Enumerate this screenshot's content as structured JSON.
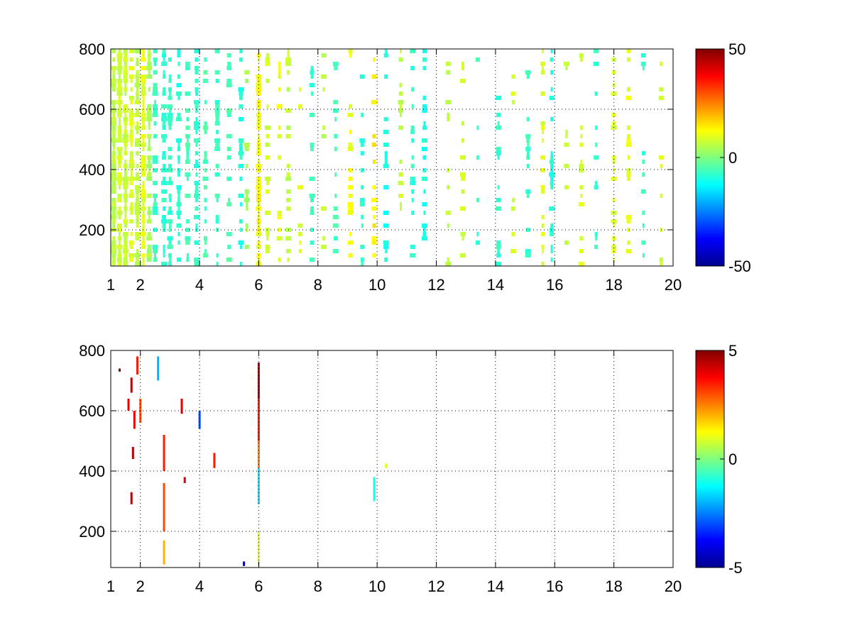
{
  "chart_data": [
    {
      "type": "heatmap",
      "title": "",
      "xlabel": "",
      "ylabel": "",
      "xlim": [
        1,
        20
      ],
      "ylim": [
        80,
        800
      ],
      "xticks": [
        1,
        2,
        4,
        6,
        8,
        10,
        12,
        14,
        16,
        18,
        20
      ],
      "yticks": [
        200,
        400,
        600,
        800
      ],
      "grid": true,
      "colormap": "jet",
      "clim": [
        -50,
        50
      ],
      "colorbar_ticks": [
        -50,
        0,
        50
      ],
      "pattern": "sparse scattered cells, dense at low x, thinning toward high x",
      "columns": [
        {
          "x": 1.1,
          "density": 0.85,
          "value": 6
        },
        {
          "x": 1.3,
          "density": 0.85,
          "value": 8
        },
        {
          "x": 1.5,
          "density": 0.8,
          "value": 7
        },
        {
          "x": 1.7,
          "density": 0.8,
          "value": 9
        },
        {
          "x": 1.9,
          "density": 0.8,
          "value": 6
        },
        {
          "x": 2.1,
          "density": 0.75,
          "value": 10
        },
        {
          "x": 2.3,
          "density": 0.7,
          "value": 4
        },
        {
          "x": 2.5,
          "density": 0.55,
          "value": -6
        },
        {
          "x": 2.8,
          "density": 0.6,
          "value": -8
        },
        {
          "x": 3.0,
          "density": 0.55,
          "value": -7
        },
        {
          "x": 3.3,
          "density": 0.6,
          "value": -9
        },
        {
          "x": 3.6,
          "density": 0.5,
          "value": -6
        },
        {
          "x": 3.9,
          "density": 0.5,
          "value": -8
        },
        {
          "x": 4.2,
          "density": 0.4,
          "value": -5
        },
        {
          "x": 4.6,
          "density": 0.35,
          "value": -7
        },
        {
          "x": 5.0,
          "density": 0.35,
          "value": -5
        },
        {
          "x": 5.4,
          "density": 0.35,
          "value": -9
        },
        {
          "x": 5.6,
          "density": 0.3,
          "value": 4
        },
        {
          "x": 6.0,
          "density": 0.85,
          "value": 12
        },
        {
          "x": 6.3,
          "density": 0.35,
          "value": 8
        },
        {
          "x": 6.7,
          "density": 0.35,
          "value": 10
        },
        {
          "x": 7.0,
          "density": 0.3,
          "value": 6
        },
        {
          "x": 7.4,
          "density": 0.25,
          "value": 9
        },
        {
          "x": 7.8,
          "density": 0.3,
          "value": -7
        },
        {
          "x": 8.2,
          "density": 0.25,
          "value": 6
        },
        {
          "x": 8.6,
          "density": 0.25,
          "value": -6
        },
        {
          "x": 9.1,
          "density": 0.35,
          "value": 11
        },
        {
          "x": 9.5,
          "density": 0.25,
          "value": -8
        },
        {
          "x": 9.9,
          "density": 0.35,
          "value": 14
        },
        {
          "x": 10.3,
          "density": 0.35,
          "value": -10
        },
        {
          "x": 10.8,
          "density": 0.2,
          "value": 7
        },
        {
          "x": 11.2,
          "density": 0.25,
          "value": -8
        },
        {
          "x": 11.6,
          "density": 0.4,
          "value": -10
        },
        {
          "x": 12.4,
          "density": 0.15,
          "value": 6
        },
        {
          "x": 12.9,
          "density": 0.2,
          "value": 8
        },
        {
          "x": 13.4,
          "density": 0.15,
          "value": -7
        },
        {
          "x": 14.1,
          "density": 0.3,
          "value": -8
        },
        {
          "x": 14.6,
          "density": 0.2,
          "value": 8
        },
        {
          "x": 15.1,
          "density": 0.2,
          "value": -7
        },
        {
          "x": 15.6,
          "density": 0.3,
          "value": 9
        },
        {
          "x": 15.9,
          "density": 0.4,
          "value": -9
        },
        {
          "x": 16.4,
          "density": 0.2,
          "value": 7
        },
        {
          "x": 16.9,
          "density": 0.3,
          "value": 9
        },
        {
          "x": 17.4,
          "density": 0.2,
          "value": -7
        },
        {
          "x": 18.0,
          "density": 0.35,
          "value": 9
        },
        {
          "x": 18.5,
          "density": 0.3,
          "value": 10
        },
        {
          "x": 19.0,
          "density": 0.2,
          "value": -7
        },
        {
          "x": 19.6,
          "density": 0.2,
          "value": 8
        }
      ]
    },
    {
      "type": "heatmap",
      "title": "",
      "xlabel": "",
      "ylabel": "",
      "xlim": [
        1,
        20
      ],
      "ylim": [
        80,
        800
      ],
      "xticks": [
        1,
        2,
        4,
        6,
        8,
        10,
        12,
        14,
        16,
        18,
        20
      ],
      "yticks": [
        200,
        400,
        600,
        800
      ],
      "grid": true,
      "colormap": "jet",
      "clim": [
        -5,
        5
      ],
      "colorbar_ticks": [
        -5,
        0,
        5
      ],
      "pattern": "very sparse isolated streaks, strong column near x = 6",
      "streaks": [
        {
          "x": 1.3,
          "y0": 730,
          "y1": 740,
          "value": 5
        },
        {
          "x": 1.6,
          "y0": 600,
          "y1": 640,
          "value": 4
        },
        {
          "x": 1.7,
          "y0": 660,
          "y1": 710,
          "value": 4.5
        },
        {
          "x": 1.8,
          "y0": 540,
          "y1": 600,
          "value": 4
        },
        {
          "x": 1.75,
          "y0": 440,
          "y1": 480,
          "value": 4.5
        },
        {
          "x": 1.7,
          "y0": 290,
          "y1": 330,
          "value": 4.5
        },
        {
          "x": 1.9,
          "y0": 720,
          "y1": 780,
          "value": 3.5
        },
        {
          "x": 2.0,
          "y0": 560,
          "y1": 640,
          "value": 3
        },
        {
          "x": 2.6,
          "y0": 700,
          "y1": 780,
          "value": -2
        },
        {
          "x": 2.8,
          "y0": 400,
          "y1": 520,
          "value": 3.5
        },
        {
          "x": 2.8,
          "y0": 200,
          "y1": 360,
          "value": 3
        },
        {
          "x": 2.8,
          "y0": 90,
          "y1": 170,
          "value": 2
        },
        {
          "x": 3.4,
          "y0": 590,
          "y1": 640,
          "value": 4
        },
        {
          "x": 3.5,
          "y0": 360,
          "y1": 380,
          "value": 4
        },
        {
          "x": 4.0,
          "y0": 540,
          "y1": 600,
          "value": -3
        },
        {
          "x": 4.5,
          "y0": 410,
          "y1": 460,
          "value": 3.5
        },
        {
          "x": 5.5,
          "y0": 85,
          "y1": 100,
          "value": -4.5
        },
        {
          "x": 6.0,
          "y0": 640,
          "y1": 760,
          "value": 4.5
        },
        {
          "x": 6.0,
          "y0": 500,
          "y1": 640,
          "value": 3.5
        },
        {
          "x": 6.0,
          "y0": 410,
          "y1": 500,
          "value": 2.5
        },
        {
          "x": 6.0,
          "y0": 290,
          "y1": 410,
          "value": -1.5
        },
        {
          "x": 6.0,
          "y0": 85,
          "y1": 200,
          "value": 1
        },
        {
          "x": 9.9,
          "y0": 300,
          "y1": 380,
          "value": -1
        },
        {
          "x": 10.3,
          "y0": 410,
          "y1": 425,
          "value": 1
        }
      ]
    }
  ]
}
